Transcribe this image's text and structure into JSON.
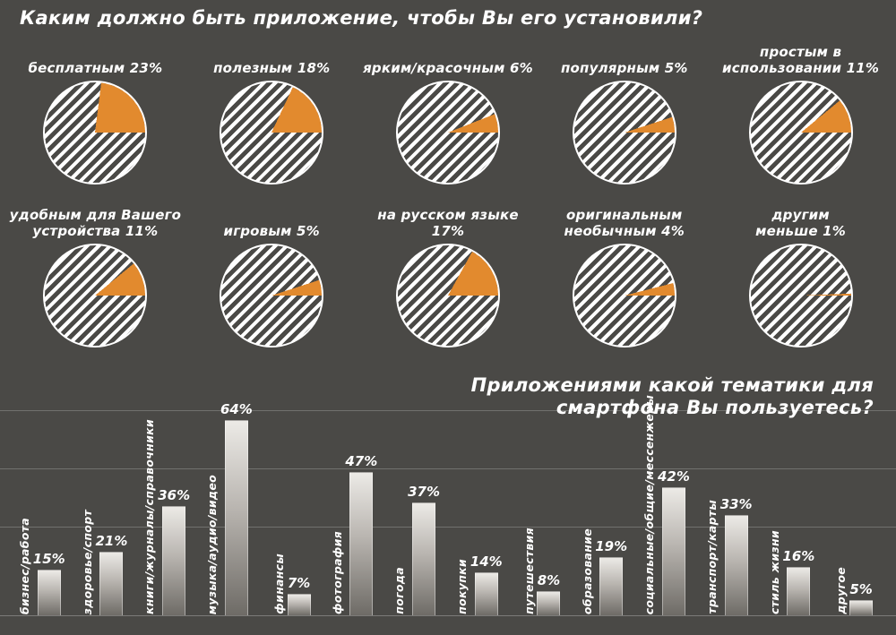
{
  "page": {
    "bg": "#4a4946",
    "accent": "#e28a2e",
    "text_color": "#ffffff"
  },
  "chart_data": [
    {
      "type": "pie",
      "title": "Каким должно быть приложение, чтобы Вы его установили?",
      "unit": "%",
      "slices": [
        {
          "label": "бесплатным",
          "value": 23,
          "display": "бесплатным 23%"
        },
        {
          "label": "полезным",
          "value": 18,
          "display": "полезным 18%"
        },
        {
          "label": "ярким/красочным",
          "value": 6,
          "display": "ярким/красочным 6%"
        },
        {
          "label": "популярным",
          "value": 5,
          "display": "популярным 5%"
        },
        {
          "label": "простым в использовании",
          "value": 11,
          "display": "простым в\nиспользовании 11%"
        },
        {
          "label": "удобным для Вашего устройства",
          "value": 11,
          "display": "удобным для Вашего\nустройства 11%"
        },
        {
          "label": "игровым",
          "value": 5,
          "display": "игровым 5%"
        },
        {
          "label": "на русском языке",
          "value": 17,
          "display": "на русском языке 17%"
        },
        {
          "label": "оригинальным необычным",
          "value": 4,
          "display": "оригинальным\nнеобычным 4%"
        },
        {
          "label": "другим",
          "value": 0.5,
          "display": "другим\nменьше 1%"
        }
      ]
    },
    {
      "type": "bar",
      "title": "Приложениями какой тематики для смартфона Вы пользуетесь?",
      "unit": "%",
      "categories": [
        "бизнес/работа",
        "здоровье/спорт",
        "книги/журналы/справочники",
        "музыка/аудио/видео",
        "финансы",
        "фотография",
        "погода",
        "покупки",
        "путешествия",
        "образование",
        "социальные/общие/мессенжеры",
        "транспорт/карты",
        "стиль жизни",
        "другое"
      ],
      "values": [
        15,
        21,
        36,
        64,
        7,
        47,
        37,
        14,
        8,
        19,
        42,
        33,
        16,
        5
      ],
      "ylim": [
        0,
        70
      ],
      "grid": true
    }
  ]
}
